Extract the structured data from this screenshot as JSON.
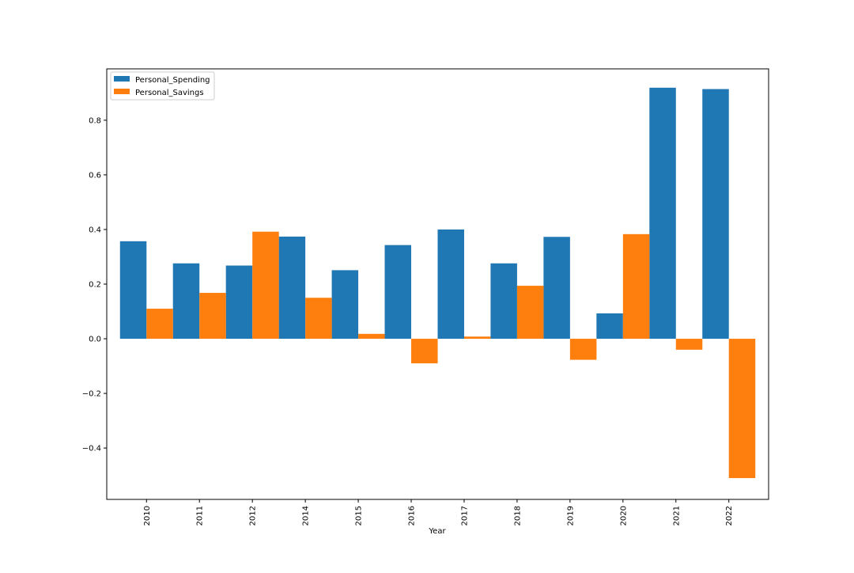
{
  "chart_data": {
    "type": "bar",
    "title": "",
    "xlabel": "Year",
    "ylabel": "",
    "categories": [
      "2010",
      "2011",
      "2012",
      "2014",
      "2015",
      "2016",
      "2017",
      "2018",
      "2019",
      "2020",
      "2021",
      "2022"
    ],
    "series": [
      {
        "name": "Personal_Spending",
        "color": "#1f77b4",
        "values": [
          0.357,
          0.276,
          0.268,
          0.374,
          0.251,
          0.343,
          0.4,
          0.276,
          0.373,
          0.093,
          0.919,
          0.914
        ]
      },
      {
        "name": "Personal_Savings",
        "color": "#ff7f0e",
        "values": [
          0.11,
          0.168,
          0.392,
          0.15,
          0.018,
          -0.09,
          0.008,
          0.194,
          -0.077,
          0.383,
          -0.04,
          -0.51
        ]
      }
    ],
    "yticks": [
      "−0.4",
      "−0.2",
      "0.0",
      "0.2",
      "0.4",
      "0.6",
      "0.8"
    ],
    "ylim": [
      -0.588,
      0.988
    ],
    "grid": false,
    "legend_position": "upper left",
    "xtick_rotation": "vertical"
  }
}
